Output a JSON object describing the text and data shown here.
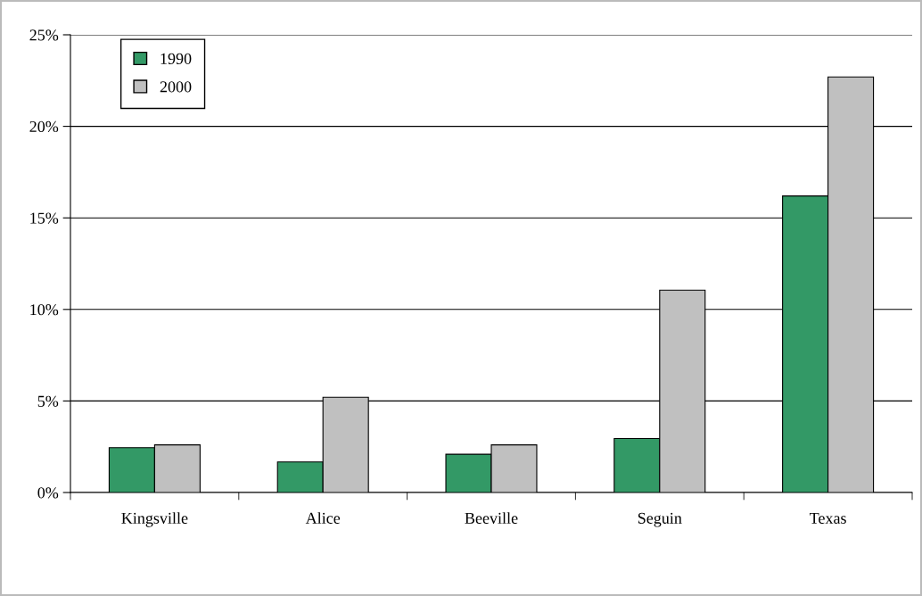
{
  "chart_data": {
    "type": "bar",
    "categories": [
      "Kingsville",
      "Alice",
      "Beeville",
      "Seguin",
      "Texas"
    ],
    "series": [
      {
        "name": "1990",
        "color": "#339966",
        "values": [
          2.45,
          1.67,
          2.09,
          2.95,
          16.2
        ]
      },
      {
        "name": "2000",
        "color": "#c0c0c0",
        "values": [
          2.6,
          5.2,
          2.6,
          11.05,
          22.7
        ]
      }
    ],
    "ylim": [
      0,
      25
    ],
    "yticks": [
      {
        "value": 0,
        "label": "0%"
      },
      {
        "value": 5,
        "label": "5%"
      },
      {
        "value": 10,
        "label": "10%"
      },
      {
        "value": 15,
        "label": "15%"
      },
      {
        "value": 20,
        "label": "20%"
      },
      {
        "value": 25,
        "label": "25%"
      }
    ],
    "grid": "y",
    "legend": "top left"
  }
}
